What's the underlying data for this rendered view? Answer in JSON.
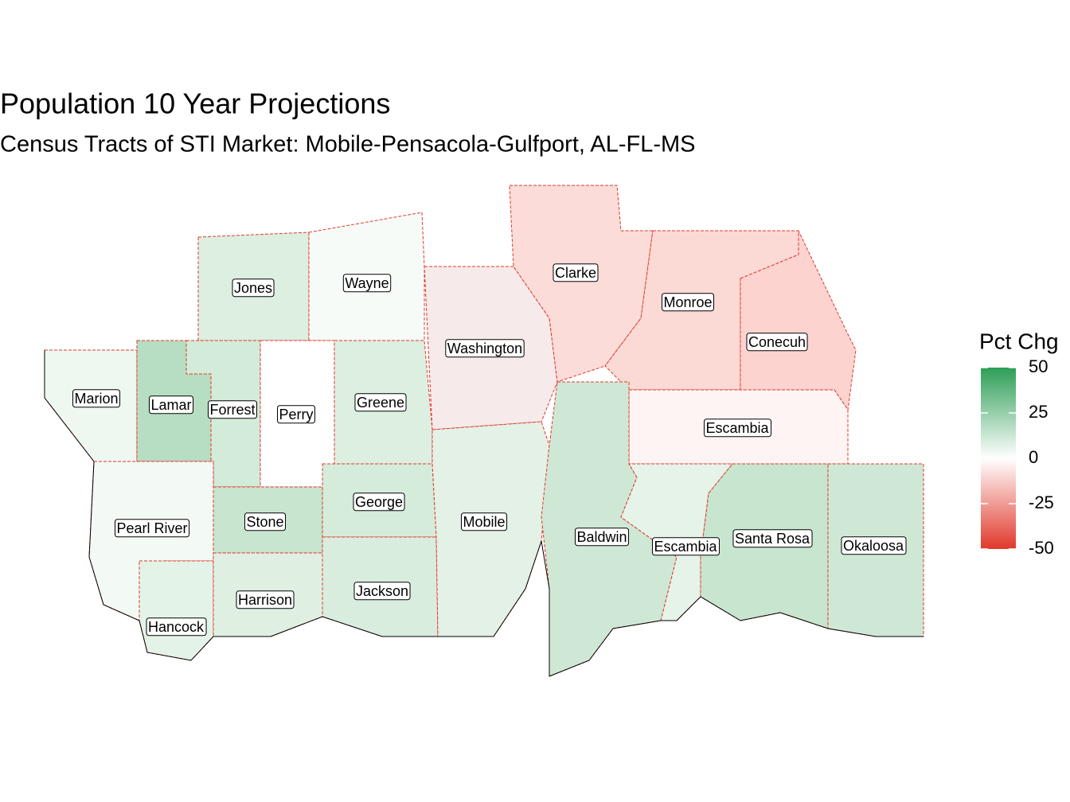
{
  "header": {
    "title": "Population 10 Year Projections",
    "subtitle": "Census Tracts of STI Market: Mobile-Pensacola-Gulfport, AL-FL-MS"
  },
  "legend": {
    "title": "Pct Chg",
    "lim": [
      -50,
      50
    ],
    "ticks": [
      50,
      25,
      0,
      -25,
      -50
    ],
    "low_color": "#e0392b",
    "mid_color": "#ffffff",
    "high_color": "#2e9e57"
  },
  "counties": [
    {
      "label": "Jones",
      "color": "#dcefe1"
    },
    {
      "label": "Wayne",
      "color": "#f7fbf8"
    },
    {
      "label": "Marion",
      "color": "#eff7f1"
    },
    {
      "label": "Lamar",
      "color": "#b7ddc2"
    },
    {
      "label": "Forrest",
      "color": "#d3ebd9"
    },
    {
      "label": "Perry",
      "color": "#ffffff"
    },
    {
      "label": "Greene",
      "color": "#dcefe1"
    },
    {
      "label": "Pearl River",
      "color": "#f3f9f4"
    },
    {
      "label": "Stone",
      "color": "#c7e5cf"
    },
    {
      "label": "George",
      "color": "#d5ecdb"
    },
    {
      "label": "Hancock",
      "color": "#e4f3e8"
    },
    {
      "label": "Harrison",
      "color": "#dff0e3"
    },
    {
      "label": "Jackson",
      "color": "#d9eddf"
    },
    {
      "label": "Washington",
      "color": "#f6ebea"
    },
    {
      "label": "Mobile",
      "color": "#e3f1e6"
    },
    {
      "label": "Clarke",
      "color": "#fbdcd8"
    },
    {
      "label": "Monroe",
      "color": "#fbd9d5"
    },
    {
      "label": "Conecuh",
      "color": "#fcd3cf"
    },
    {
      "label": "Escambia",
      "color": "#fdf4f3"
    },
    {
      "label": "Baldwin",
      "color": "#cfe8d5"
    },
    {
      "label": "Escambia",
      "color": "#e6f3e9"
    },
    {
      "label": "Santa Rosa",
      "color": "#c7e5cf"
    },
    {
      "label": "Okaloosa",
      "color": "#cfe8d5"
    }
  ]
}
